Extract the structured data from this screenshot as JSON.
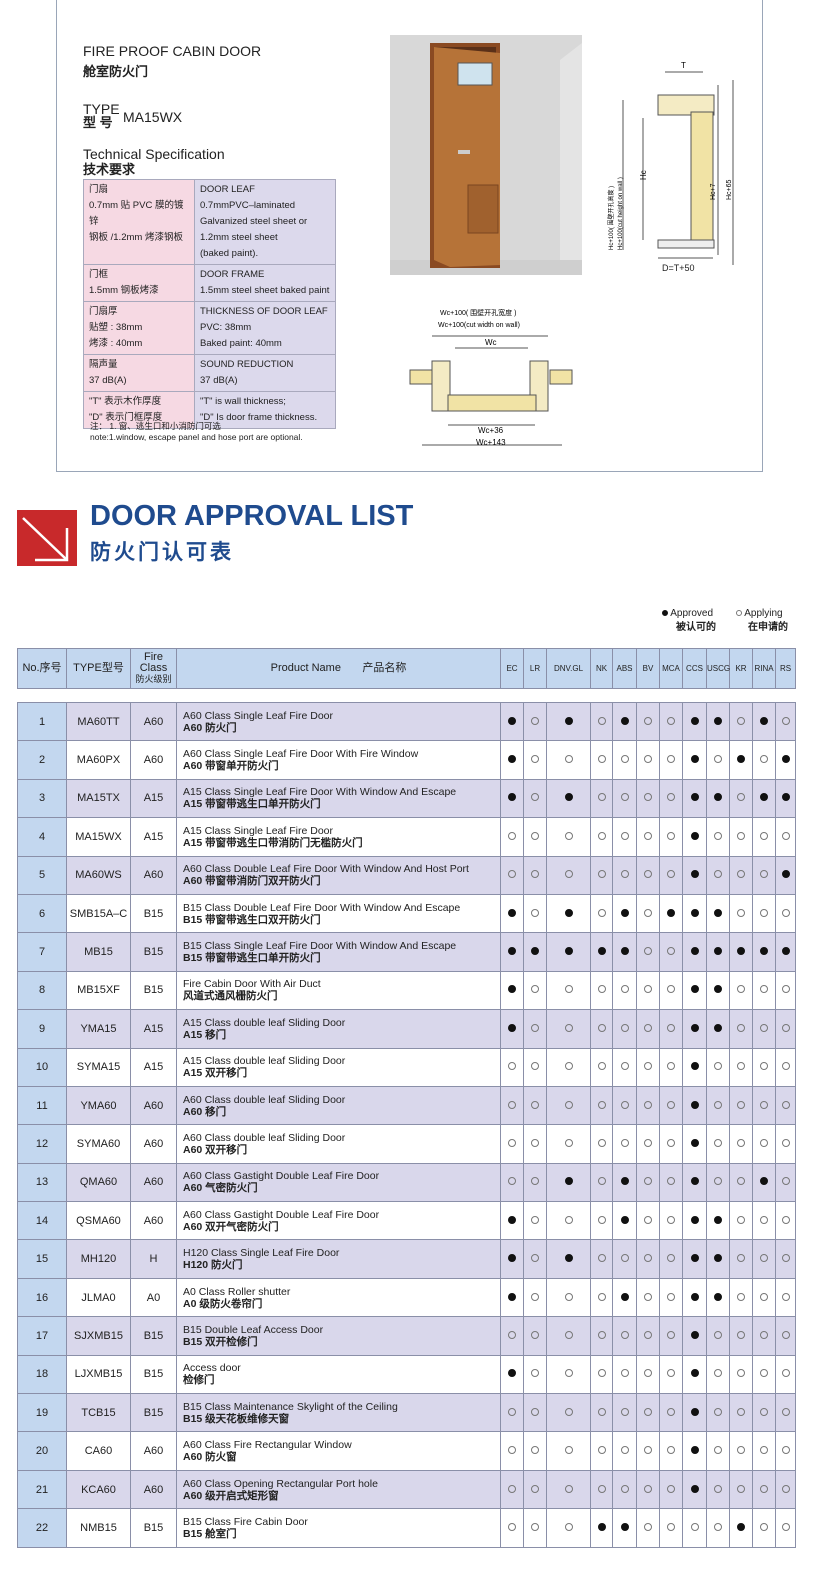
{
  "spec_sheet": {
    "title_en": "FIRE PROOF CABIN DOOR",
    "title_cn": "舱室防火门",
    "type_label_en": "TYPE",
    "type_label_cn": "型  号",
    "type_value": "MA15WX",
    "tech_en": "Technical Specification",
    "tech_cn": "技术要求",
    "rows": [
      {
        "cn": [
          "门扇",
          "0.7mm 贴 PVC 膜的镀锌",
          "钢板 /1.2mm 烤漆钢板"
        ],
        "en": [
          "DOOR LEAF",
          "0.7mmPVC–laminated",
          "Galvanized steel sheet or",
          "1.2mm steel sheet",
          "(baked paint)."
        ]
      },
      {
        "cn": [
          "门框",
          "1.5mm 钢板烤漆"
        ],
        "en": [
          "DOOR FRAME",
          "1.5mm steel sheet baked paint"
        ]
      },
      {
        "cn": [
          "门扇厚",
          "贴塑 : 38mm",
          "烤漆 : 40mm"
        ],
        "en": [
          "THICKNESS OF DOOR LEAF",
          "PVC: 38mm",
          "Baked paint: 40mm"
        ]
      },
      {
        "cn": [
          "隔声量",
          "37 dB(A)"
        ],
        "en": [
          "SOUND REDUCTION",
          "37 dB(A)"
        ]
      },
      {
        "cn": [
          "\"T\" 表示木作厚度",
          "\"D\" 表示门框厚度"
        ],
        "en": [
          "\"T\" is wall thickness;",
          "\"D\" Is door frame thickness."
        ]
      }
    ],
    "note_cn": "注： 1. 窗、逃生口和小消防门可选",
    "note_en": "note:1.window, escape panel and hose port are optional.",
    "section_labels": {
      "t": "T",
      "hc": "Hc",
      "hc7": "Hc+7",
      "hc65": "Hc+65",
      "hc100_cn": "Hc+100( 围壁开孔高度 )",
      "hc100_en": "Hc+100(cut height on wall )",
      "d": "D=T+50"
    },
    "plan_labels": {
      "wc100_cn": "Wc+100( 围壁开孔宽度 )",
      "wc100_en": "Wc+100(cut width on wall)",
      "wc": "Wc",
      "wc36": "Wc+36",
      "wc143": "Wc+143"
    }
  },
  "header": {
    "title_en": "DOOR APPROVAL LIST",
    "title_cn": "防火门认可表",
    "icon_color": "#c8292b",
    "title_color": "#1f4b8e"
  },
  "legend": {
    "approved_en": "Approved",
    "approved_cn": "被认可的",
    "applying_en": "Applying",
    "applying_cn": "在申请的"
  },
  "table": {
    "headers": {
      "no": "No.序号",
      "type": "TYPE型号",
      "fire1": "Fire",
      "fire2": "Class",
      "fire3": "防火级别",
      "name_en": "Product Name",
      "name_cn": "产品名称"
    },
    "societies": [
      "EC",
      "LR",
      "DNV.GL",
      "NK",
      "ABS",
      "BV",
      "MCA",
      "CCS",
      "USCG",
      "KR",
      "RINA",
      "RS"
    ],
    "rows": [
      {
        "no": "1",
        "type": "MA60TT",
        "cls": "A60",
        "en": "A60 Class Single Leaf Fire Door",
        "cn": "A60 防火门",
        "a": [
          1,
          0,
          1,
          0,
          1,
          0,
          0,
          1,
          1,
          0,
          1,
          0
        ]
      },
      {
        "no": "2",
        "type": "MA60PX",
        "cls": "A60",
        "en": "A60 Class Single Leaf Fire Door With Fire Window",
        "cn": "A60 带窗单开防火门",
        "a": [
          1,
          0,
          0,
          0,
          0,
          0,
          0,
          1,
          0,
          1,
          0,
          1
        ]
      },
      {
        "no": "3",
        "type": "MA15TX",
        "cls": "A15",
        "en": "A15 Class Single Leaf Fire Door With Window And Escape",
        "cn": "A15 带窗带逃生口单开防火门",
        "a": [
          1,
          0,
          1,
          0,
          0,
          0,
          0,
          1,
          1,
          0,
          1,
          1
        ]
      },
      {
        "no": "4",
        "type": "MA15WX",
        "cls": "A15",
        "en": "A15 Class Single Leaf Fire Door",
        "cn": "A15 带窗带逃生口带消防门无槛防火门",
        "a": [
          0,
          0,
          0,
          0,
          0,
          0,
          0,
          1,
          0,
          0,
          0,
          0
        ]
      },
      {
        "no": "5",
        "type": "MA60WS",
        "cls": "A60",
        "en": "A60 Class Double Leaf Fire Door With Window And Host Port",
        "cn": "A60 带窗带消防门双开防火门",
        "a": [
          0,
          0,
          0,
          0,
          0,
          0,
          0,
          1,
          0,
          0,
          0,
          1
        ]
      },
      {
        "no": "6",
        "type": "SMB15A–C",
        "cls": "B15",
        "en": "B15 Class Double Leaf Fire Door With Window And Escape",
        "cn": "B15 带窗带逃生口双开防火门",
        "a": [
          1,
          0,
          1,
          0,
          1,
          0,
          1,
          1,
          1,
          0,
          0,
          0
        ]
      },
      {
        "no": "7",
        "type": "MB15",
        "cls": "B15",
        "en": "B15 Class Single Leaf Fire Door With Window And Escape",
        "cn": "B15 带窗带逃生口单开防火门",
        "a": [
          1,
          1,
          1,
          1,
          1,
          0,
          0,
          1,
          1,
          1,
          1,
          1
        ]
      },
      {
        "no": "8",
        "type": "MB15XF",
        "cls": "B15",
        "en": "Fire Cabin Door With Air Duct",
        "cn": "风道式通风栅防火门",
        "a": [
          1,
          0,
          0,
          0,
          0,
          0,
          0,
          1,
          1,
          0,
          0,
          0
        ]
      },
      {
        "no": "9",
        "type": "YMA15",
        "cls": "A15",
        "en": "A15 Class double leaf Sliding Door",
        "cn": "A15 移门",
        "a": [
          1,
          0,
          0,
          0,
          0,
          0,
          0,
          1,
          1,
          0,
          0,
          0
        ]
      },
      {
        "no": "10",
        "type": "SYMA15",
        "cls": "A15",
        "en": "A15 Class double leaf Sliding Door",
        "cn": "A15 双开移门",
        "a": [
          0,
          0,
          0,
          0,
          0,
          0,
          0,
          1,
          0,
          0,
          0,
          0
        ]
      },
      {
        "no": "11",
        "type": "YMA60",
        "cls": "A60",
        "en": "A60 Class double leaf Sliding Door",
        "cn": "A60 移门",
        "a": [
          0,
          0,
          0,
          0,
          0,
          0,
          0,
          1,
          0,
          0,
          0,
          0
        ]
      },
      {
        "no": "12",
        "type": "SYMA60",
        "cls": "A60",
        "en": "A60 Class double leaf Sliding Door",
        "cn": "A60 双开移门",
        "a": [
          0,
          0,
          0,
          0,
          0,
          0,
          0,
          1,
          0,
          0,
          0,
          0
        ]
      },
      {
        "no": "13",
        "type": "QMA60",
        "cls": "A60",
        "en": "A60 Class Gastight Double Leaf Fire Door",
        "cn": "A60 气密防火门",
        "a": [
          0,
          0,
          1,
          0,
          1,
          0,
          0,
          1,
          0,
          0,
          1,
          0
        ]
      },
      {
        "no": "14",
        "type": "QSMA60",
        "cls": "A60",
        "en": "A60 Class Gastight Double Leaf Fire Door",
        "cn": "A60 双开气密防火门",
        "a": [
          1,
          0,
          0,
          0,
          1,
          0,
          0,
          1,
          1,
          0,
          0,
          0
        ]
      },
      {
        "no": "15",
        "type": "MH120",
        "cls": "H",
        "en": "H120 Class Single Leaf Fire Door",
        "cn": "H120 防火门",
        "a": [
          1,
          0,
          1,
          0,
          0,
          0,
          0,
          1,
          1,
          0,
          0,
          0
        ]
      },
      {
        "no": "16",
        "type": "JLMA0",
        "cls": "A0",
        "en": "A0 Class Roller shutter",
        "cn": "A0 级防火卷帘门",
        "a": [
          1,
          0,
          0,
          0,
          1,
          0,
          0,
          1,
          1,
          0,
          0,
          0
        ]
      },
      {
        "no": "17",
        "type": "SJXMB15",
        "cls": "B15",
        "en": "B15  Double Leaf Access Door",
        "cn": "B15 双开检修门",
        "a": [
          0,
          0,
          0,
          0,
          0,
          0,
          0,
          1,
          0,
          0,
          0,
          0
        ]
      },
      {
        "no": "18",
        "type": "LJXMB15",
        "cls": "B15",
        "en": "Access door",
        "cn": "检修门",
        "a": [
          1,
          0,
          0,
          0,
          0,
          0,
          0,
          1,
          0,
          0,
          0,
          0
        ]
      },
      {
        "no": "19",
        "type": "TCB15",
        "cls": "B15",
        "en": "B15 Class Maintenance Skylight of the Ceiling",
        "cn": "B15 级天花板维修天窗",
        "a": [
          0,
          0,
          0,
          0,
          0,
          0,
          0,
          1,
          0,
          0,
          0,
          0
        ]
      },
      {
        "no": "20",
        "type": "CA60",
        "cls": "A60",
        "en": "A60 Class Fire Rectangular Window",
        "cn": "A60 防火窗",
        "a": [
          0,
          0,
          0,
          0,
          0,
          0,
          0,
          1,
          0,
          0,
          0,
          0
        ]
      },
      {
        "no": "21",
        "type": "KCA60",
        "cls": "A60",
        "en": "A60 Class  Opening Rectangular Port hole",
        "cn": "A60 级开启式矩形窗",
        "a": [
          0,
          0,
          0,
          0,
          0,
          0,
          0,
          1,
          0,
          0,
          0,
          0
        ]
      },
      {
        "no": "22",
        "type": "NMB15",
        "cls": "B15",
        "en": "B15 Class Fire Cabin Door",
        "cn": "B15 舱室门",
        "a": [
          0,
          0,
          0,
          1,
          1,
          0,
          0,
          0,
          0,
          1,
          0,
          0
        ]
      }
    ]
  }
}
